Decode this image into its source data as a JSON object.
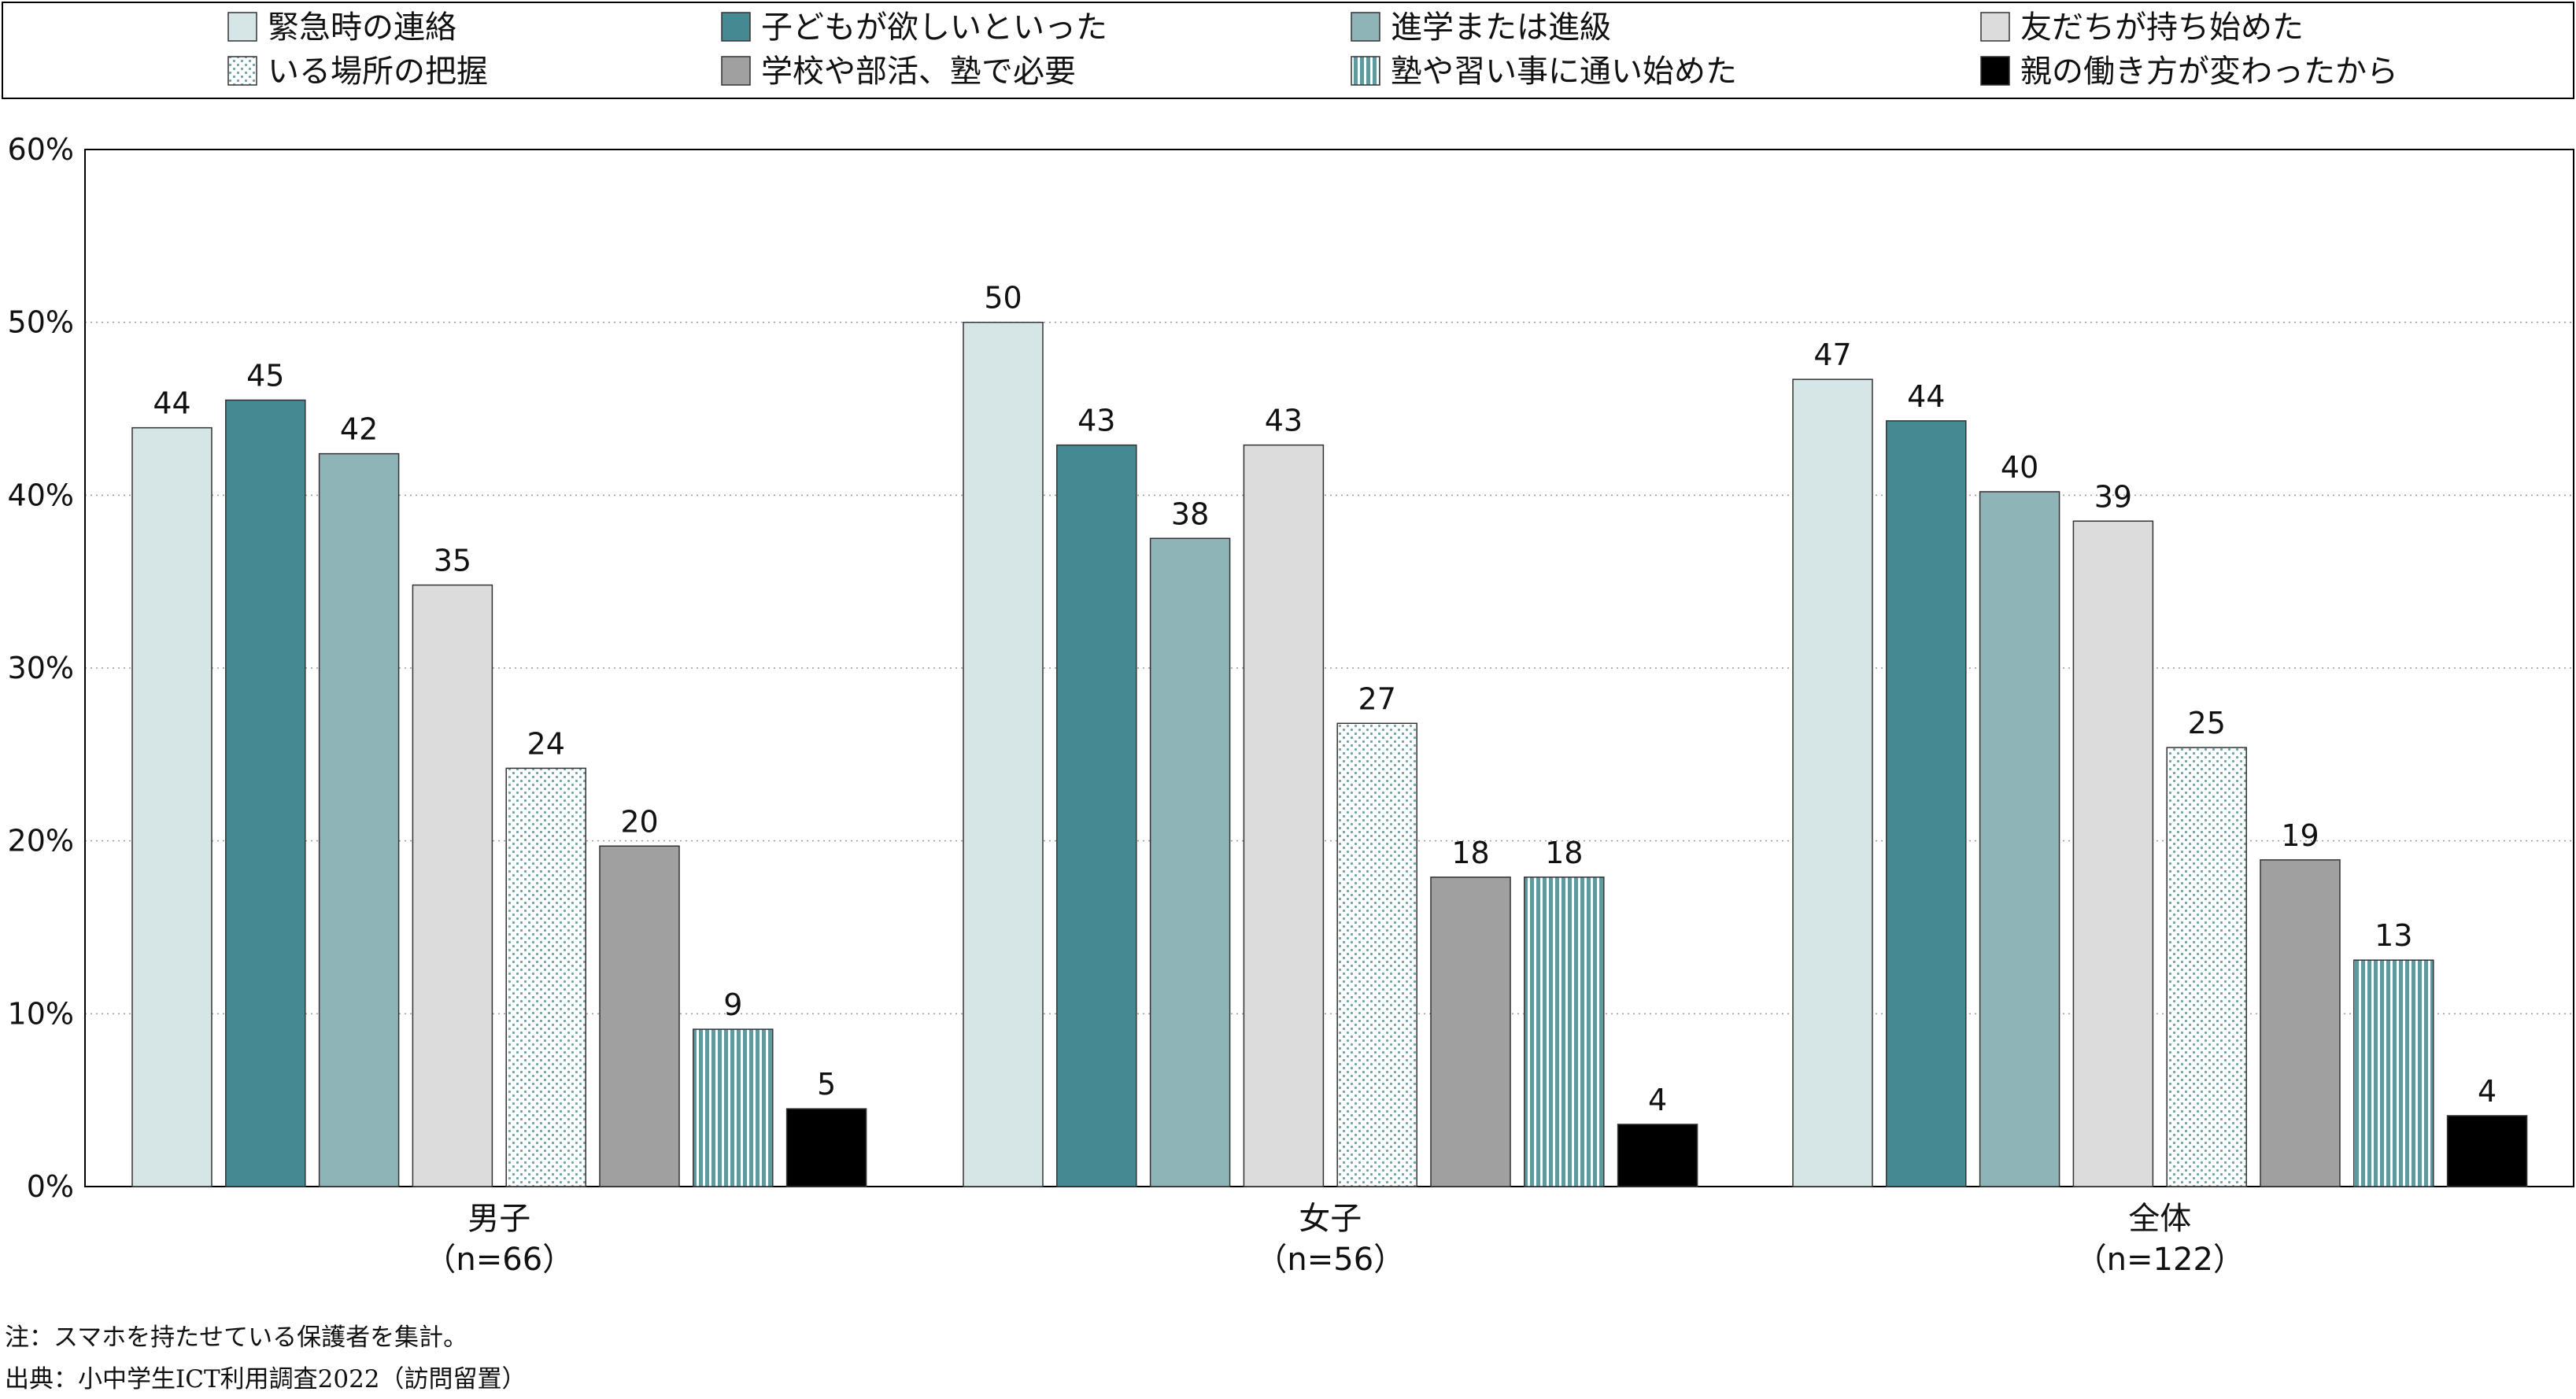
{
  "chart_data": {
    "type": "bar",
    "categories": [
      {
        "name": "男子",
        "n": "（n=66）"
      },
      {
        "name": "女子",
        "n": "（n=56）"
      },
      {
        "name": "全体",
        "n": "（n=122）"
      }
    ],
    "series": [
      {
        "name": "緊急時の連絡",
        "values": [
          44,
          50,
          47
        ],
        "exact": [
          43.9,
          50.0,
          46.7
        ],
        "color": "#d6e5e6",
        "pattern": "solid"
      },
      {
        "name": "子どもが欲しいといった",
        "values": [
          45,
          43,
          44
        ],
        "exact": [
          45.5,
          42.9,
          44.3
        ],
        "color": "#458a92",
        "pattern": "solid"
      },
      {
        "name": "進学または進級",
        "values": [
          42,
          38,
          40
        ],
        "exact": [
          42.4,
          37.5,
          40.2
        ],
        "color": "#8fb4b8",
        "pattern": "solid"
      },
      {
        "name": "友だちが持ち始めた",
        "values": [
          35,
          43,
          39
        ],
        "exact": [
          34.8,
          42.9,
          38.5
        ],
        "color": "#dcdcdc",
        "pattern": "solid"
      },
      {
        "name": "いる場所の把握",
        "values": [
          24,
          27,
          25
        ],
        "exact": [
          24.2,
          26.8,
          25.4
        ],
        "color": "#ffffff",
        "pattern": "dots"
      },
      {
        "name": "学校や部活、塾で必要",
        "values": [
          20,
          18,
          19
        ],
        "exact": [
          19.7,
          17.9,
          18.9
        ],
        "color": "#a0a0a0",
        "pattern": "solid"
      },
      {
        "name": "塾や習い事に通い始めた",
        "values": [
          9,
          18,
          13
        ],
        "exact": [
          9.1,
          17.9,
          13.1
        ],
        "color": "#7fb0b3",
        "pattern": "vstripes"
      },
      {
        "name": "親の働き方が変わったから",
        "values": [
          5,
          4,
          4
        ],
        "exact": [
          4.5,
          3.6,
          4.1
        ],
        "color": "#000000",
        "pattern": "solid"
      }
    ],
    "yticks": [
      "0%",
      "10%",
      "20%",
      "30%",
      "40%",
      "50%",
      "60%"
    ],
    "ylim": [
      0,
      60
    ],
    "grid": true,
    "legend_position": "top",
    "title": "",
    "xlabel": "",
    "ylabel": ""
  },
  "notes": {
    "note": "注：スマホを持たせている保護者を集計。",
    "source": "出典：小中学生ICT利用調査2022（訪問留置）"
  }
}
